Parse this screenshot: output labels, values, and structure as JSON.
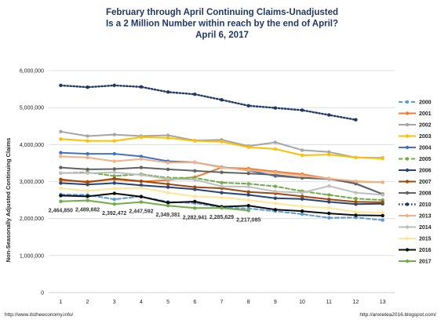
{
  "chart_data": {
    "type": "line",
    "title": [
      "February through April Continuing Claims-Unadjusted",
      "Is a 2 Million Number within reach by the end of April?",
      "April 6, 2017"
    ],
    "ylabel": "Non-Seasonally Adjusted Continuing Claims",
    "xlabel": "",
    "x": [
      1,
      2,
      3,
      4,
      5,
      6,
      7,
      8,
      9,
      10,
      11,
      12,
      13
    ],
    "ylim": [
      0,
      6000000
    ],
    "yticks": [
      "0",
      "1,000,000",
      "2,000,000",
      "3,000,000",
      "4,000,000",
      "5,000,000",
      "6,000,000"
    ],
    "grid": true,
    "legend_position": "right",
    "series": [
      {
        "name": "2000",
        "color": "#5b9bd5",
        "dash": "long",
        "values": [
          2650000,
          2640000,
          2520000,
          2600000,
          2450000,
          2420000,
          2300000,
          2270000,
          2200000,
          2120000,
          2020000,
          2030000,
          1960000
        ]
      },
      {
        "name": "2001",
        "color": "#ed7d31",
        "dash": "solid",
        "values": [
          3030000,
          3000000,
          3060000,
          3000000,
          3040000,
          3120000,
          3380000,
          3350000,
          3270000,
          3200000,
          3080000,
          3000000,
          2980000
        ]
      },
      {
        "name": "2002",
        "color": "#a5a5a5",
        "dash": "solid",
        "values": [
          4350000,
          4230000,
          4270000,
          4230000,
          4250000,
          4110000,
          4130000,
          3960000,
          4060000,
          3850000,
          3800000,
          3650000,
          3640000
        ]
      },
      {
        "name": "2003",
        "color": "#ffc000",
        "dash": "solid",
        "values": [
          4150000,
          4100000,
          4100000,
          4200000,
          4180000,
          4100000,
          4080000,
          3930000,
          3880000,
          3710000,
          3730000,
          3650000,
          3620000
        ]
      },
      {
        "name": "2004",
        "color": "#4472c4",
        "dash": "solid",
        "values": [
          3780000,
          3750000,
          3750000,
          3680000,
          3550000,
          3520000,
          3390000,
          3300000,
          3150000,
          3100000,
          3070000,
          2950000,
          2660000
        ]
      },
      {
        "name": "2005",
        "color": "#70ad47",
        "dash": "long",
        "values": [
          3230000,
          3250000,
          3150000,
          3200000,
          3100000,
          3100000,
          2970000,
          2940000,
          2870000,
          2740000,
          2640000,
          2540000,
          2500000
        ]
      },
      {
        "name": "2006",
        "color": "#264478",
        "dash": "solid",
        "values": [
          2960000,
          2920000,
          2960000,
          2900000,
          2850000,
          2790000,
          2700000,
          2640000,
          2550000,
          2530000,
          2450000,
          2390000,
          2400000
        ]
      },
      {
        "name": "2007",
        "color": "#9e480e",
        "dash": "solid",
        "values": [
          3060000,
          2980000,
          3080000,
          3010000,
          2930000,
          2850000,
          2820000,
          2720000,
          2680000,
          2600000,
          2520000,
          2450000,
          2440000
        ]
      },
      {
        "name": "2008",
        "color": "#636363",
        "dash": "solid",
        "values": [
          3380000,
          3330000,
          3340000,
          3380000,
          3330000,
          3290000,
          3250000,
          3220000,
          3180000,
          3100000,
          3080000,
          2940000,
          2660000
        ]
      },
      {
        "name": "2010",
        "color": "#1f3864",
        "dash": "dot",
        "values": [
          5600000,
          5550000,
          5600000,
          5560000,
          5420000,
          5360000,
          5210000,
          5050000,
          4990000,
          4930000,
          4800000,
          4670000,
          null
        ]
      },
      {
        "name": "2013",
        "color": "#f4b183",
        "dash": "solid",
        "values": [
          3680000,
          3650000,
          3550000,
          3610000,
          3510000,
          3520000,
          3380000,
          3310000,
          3240000,
          3160000,
          3080000,
          3010000,
          2980000
        ]
      },
      {
        "name": "2014",
        "color": "#bfbfbf",
        "dash": "solid",
        "values": [
          3230000,
          3230000,
          3250000,
          3180000,
          3070000,
          3050000,
          2870000,
          2860000,
          2730000,
          2700000,
          2880000,
          2700000,
          2640000
        ]
      },
      {
        "name": "2015",
        "color": "#ffe699",
        "dash": "solid",
        "values": [
          2820000,
          2750000,
          2810000,
          2830000,
          2700000,
          2600000,
          2570000,
          2500000,
          2410000,
          2330000,
          2290000,
          2180000,
          2160000
        ]
      },
      {
        "name": "2016",
        "color": "#0d0d0d",
        "dash": "solid",
        "values": [
          2620000,
          2600000,
          2680000,
          2590000,
          2430000,
          2460000,
          2320000,
          2350000,
          2240000,
          2200000,
          2140000,
          2090000,
          2080000
        ]
      },
      {
        "name": "2017",
        "color": "#70ad47",
        "dash": "solid",
        "values": [
          2464850,
          2489682,
          2392472,
          2447592,
          2349381,
          2282941,
          2285629,
          2217085,
          null,
          null,
          null,
          null,
          null
        ]
      }
    ],
    "data_labels": [
      {
        "x": 1,
        "text": "2,464,850"
      },
      {
        "x": 2,
        "text": "2,489,682"
      },
      {
        "x": 3,
        "text": "2,392,472"
      },
      {
        "x": 4,
        "text": "2,447,592"
      },
      {
        "x": 5,
        "text": "2,349,381"
      },
      {
        "x": 6,
        "text": "2,282,941"
      },
      {
        "x": 7,
        "text": "2,285,629"
      },
      {
        "x": 8,
        "text": "2,217,085"
      }
    ]
  },
  "footer": {
    "left": "http://www.itstheeconomy.info/",
    "right": "http://anxietea2016.blogspot.com/"
  }
}
